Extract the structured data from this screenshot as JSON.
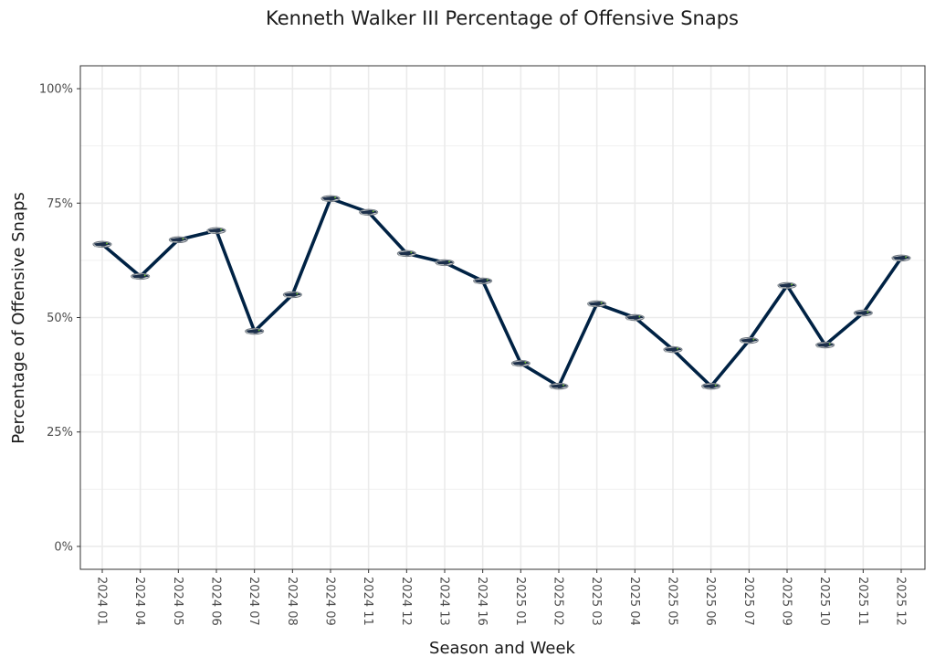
{
  "chart_data": {
    "type": "line",
    "title": "Kenneth Walker III Percentage of Offensive Snaps",
    "xlabel": "Season and Week",
    "ylabel": "Percentage of Offensive Snaps",
    "ylim": [
      -0.05,
      1.05
    ],
    "yticks": [
      0,
      0.25,
      0.5,
      0.75,
      1.0
    ],
    "ytick_labels": [
      "0%",
      "25%",
      "50%",
      "75%",
      "100%"
    ],
    "grid": true,
    "categories": [
      "2024 01",
      "2024 04",
      "2024 05",
      "2024 06",
      "2024 07",
      "2024 08",
      "2024 09",
      "2024 11",
      "2024 12",
      "2024 13",
      "2024 16",
      "2025 01",
      "2025 02",
      "2025 03",
      "2025 04",
      "2025 05",
      "2025 06",
      "2025 07",
      "2025 09",
      "2025 10",
      "2025 11",
      "2025 12"
    ],
    "series": [
      {
        "name": "Kenneth Walker III",
        "color": "#002244",
        "marker": "seahawks-logo-icon",
        "values": [
          0.66,
          0.59,
          0.67,
          0.69,
          0.47,
          0.55,
          0.76,
          0.73,
          0.64,
          0.62,
          0.58,
          0.4,
          0.35,
          0.53,
          0.5,
          0.43,
          0.35,
          0.45,
          0.57,
          0.44,
          0.51,
          0.63
        ]
      }
    ]
  }
}
